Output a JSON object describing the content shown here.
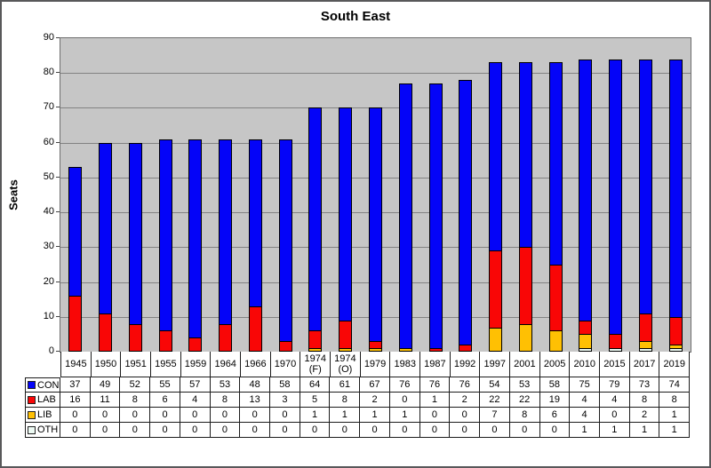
{
  "window": {
    "title": "South East"
  },
  "chart_data": {
    "type": "bar",
    "stacked": true,
    "title": "South East",
    "xlabel": "",
    "ylabel": "Seats",
    "ylim": [
      0,
      90
    ],
    "ytick_step": 10,
    "grid": true,
    "plot_background": "#c6c6c6",
    "gridline_color": "#828282",
    "legend_position": "table-left",
    "categories": [
      "1945",
      "1950",
      "1951",
      "1955",
      "1959",
      "1964",
      "1966",
      "1970",
      "1974 (F)",
      "1974 (O)",
      "1979",
      "1983",
      "1987",
      "1992",
      "1997",
      "2001",
      "2005",
      "2010",
      "2015",
      "2017",
      "2019"
    ],
    "series": [
      {
        "name": "CON",
        "color": "#0404f8",
        "values": [
          37,
          49,
          52,
          55,
          57,
          53,
          48,
          58,
          64,
          61,
          67,
          76,
          76,
          76,
          54,
          53,
          58,
          75,
          79,
          73,
          74
        ]
      },
      {
        "name": "LAB",
        "color": "#f90606",
        "values": [
          16,
          11,
          8,
          6,
          4,
          8,
          13,
          3,
          5,
          8,
          2,
          0,
          1,
          2,
          22,
          22,
          19,
          4,
          4,
          8,
          8
        ]
      },
      {
        "name": "LIB",
        "color": "#ffc003",
        "values": [
          0,
          0,
          0,
          0,
          0,
          0,
          0,
          0,
          1,
          1,
          1,
          1,
          0,
          0,
          7,
          8,
          6,
          4,
          0,
          2,
          1
        ]
      },
      {
        "name": "OTH",
        "color": "#edfaf3",
        "values": [
          0,
          0,
          0,
          0,
          0,
          0,
          0,
          0,
          0,
          0,
          0,
          0,
          0,
          0,
          0,
          0,
          0,
          1,
          1,
          1,
          1
        ]
      }
    ]
  }
}
